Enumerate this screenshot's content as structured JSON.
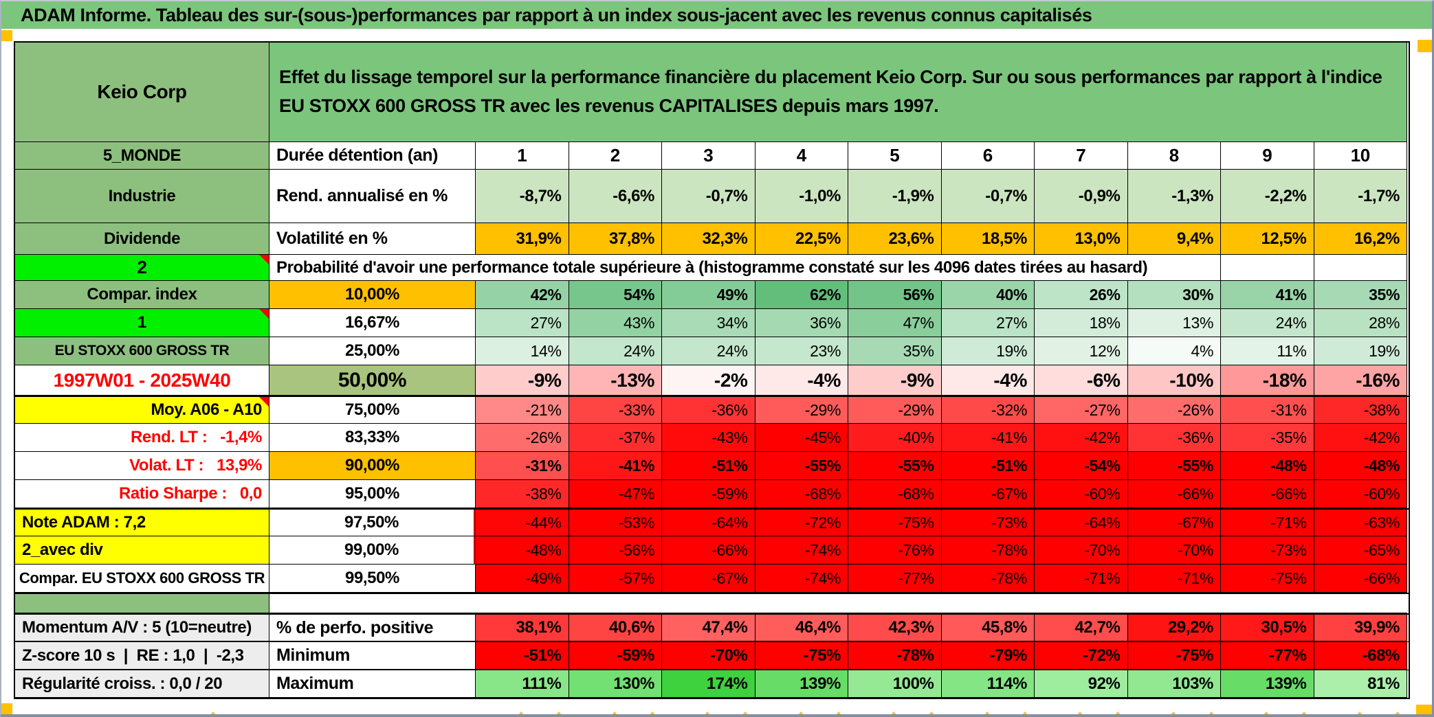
{
  "window": {
    "title_bar": "ADAM Informe. Tableau des sur-(sous-)performances par rapport à un index sous-jacent avec les revenus connus capitalisés"
  },
  "header": {
    "entity": "Keio Corp",
    "description": "Effet du lissage temporel sur la performance financière du placement Keio Corp. Sur ou sous performances par rapport à l'indice EU STOXX 600 GROSS TR avec les revenus CAPITALISES depuis mars 1997."
  },
  "col_header": {
    "label": "5_MONDE",
    "metric": "Durée détention (an)",
    "columns": [
      "1",
      "2",
      "3",
      "4",
      "5",
      "6",
      "7",
      "8",
      "9",
      "10"
    ]
  },
  "stat_rows": [
    {
      "label": "Industrie",
      "metric": "Rend. annualisé en %",
      "values": [
        "-8,7%",
        "-6,6%",
        "-0,7%",
        "-1,0%",
        "-1,9%",
        "-0,7%",
        "-0,9%",
        "-1,3%",
        "-2,2%",
        "-1,7%"
      ]
    },
    {
      "label": "Dividende",
      "metric": "Volatilité en %",
      "values": [
        "31,9%",
        "37,8%",
        "32,3%",
        "22,5%",
        "23,6%",
        "18,5%",
        "13,0%",
        "9,4%",
        "12,5%",
        "16,2%"
      ]
    }
  ],
  "probability_header": {
    "label": "2",
    "text": "Probabilité d'avoir une performance totale supérieure à (histogramme constaté sur les 4096 dates tirées au hasard)"
  },
  "percentile_rows": [
    {
      "label": "Compar. index",
      "pct": "10,00%",
      "values": [
        42,
        54,
        49,
        62,
        56,
        40,
        26,
        30,
        41,
        35
      ]
    },
    {
      "label": "1",
      "pct": "16,67%",
      "values": [
        27,
        43,
        34,
        36,
        47,
        27,
        18,
        13,
        24,
        28
      ]
    },
    {
      "label": "EU STOXX 600 GROSS TR",
      "pct": "25,00%",
      "values": [
        14,
        24,
        24,
        23,
        35,
        19,
        12,
        4,
        11,
        19
      ]
    },
    {
      "label": "1997W01 - 2025W40",
      "pct": "50,00%",
      "values": [
        -9,
        -13,
        -2,
        -4,
        -9,
        -4,
        -6,
        -10,
        -18,
        -16
      ]
    },
    {
      "label": "Moy. A06 - A10",
      "pct": "75,00%",
      "values": [
        -21,
        -33,
        -36,
        -29,
        -29,
        -32,
        -27,
        -26,
        -31,
        -38
      ]
    },
    {
      "label": "Rend. LT :   -1,4%",
      "pct": "83,33%",
      "values": [
        -26,
        -37,
        -43,
        -45,
        -40,
        -41,
        -42,
        -36,
        -35,
        -42
      ]
    },
    {
      "label": "Volat. LT :   13,9%",
      "pct": "90,00%",
      "values": [
        -31,
        -41,
        -51,
        -55,
        -55,
        -51,
        -54,
        -55,
        -48,
        -48
      ]
    },
    {
      "label": "Ratio Sharpe :   0,0",
      "pct": "95,00%",
      "values": [
        -38,
        -47,
        -59,
        -68,
        -68,
        -67,
        -60,
        -66,
        -66,
        -60
      ]
    },
    {
      "label": "Note ADAM : 7,2",
      "pct": "97,50%",
      "values": [
        -44,
        -53,
        -64,
        -72,
        -75,
        -73,
        -64,
        -67,
        -71,
        -63
      ]
    },
    {
      "label": "2_avec div",
      "pct": "99,00%",
      "values": [
        -48,
        -56,
        -66,
        -74,
        -76,
        -78,
        -70,
        -70,
        -73,
        -65
      ]
    },
    {
      "label": "Compar. EU STOXX 600 GROSS TR",
      "pct": "99,50%",
      "values": [
        -49,
        -57,
        -67,
        -74,
        -77,
        -78,
        -71,
        -71,
        -75,
        -66
      ]
    }
  ],
  "footer_rows": [
    {
      "label": "Momentum A/V : 5 (10=neutre)",
      "metric": "% de perfo. positive",
      "display": [
        "38,1%",
        "40,6%",
        "47,4%",
        "46,4%",
        "42,3%",
        "45,8%",
        "42,7%",
        "29,2%",
        "30,5%",
        "39,9%"
      ],
      "values": [
        38.1,
        40.6,
        47.4,
        46.4,
        42.3,
        45.8,
        42.7,
        29.2,
        30.5,
        39.9
      ],
      "scale": "perf"
    },
    {
      "label": "Z-score 10 s  |  RE : 1,0  |  -2,3",
      "metric": "Minimum",
      "display": [
        "-51%",
        "-59%",
        "-70%",
        "-75%",
        "-78%",
        "-79%",
        "-72%",
        "-75%",
        "-77%",
        "-68%"
      ],
      "values": [
        -51,
        -59,
        -70,
        -75,
        -78,
        -79,
        -72,
        -75,
        -77,
        -68
      ],
      "scale": "min"
    },
    {
      "label": "Régularité croiss. : 0,0 / 20",
      "metric": "Maximum",
      "display": [
        "111%",
        "130%",
        "174%",
        "139%",
        "100%",
        "114%",
        "92%",
        "103%",
        "139%",
        "81%"
      ],
      "values": [
        111,
        130,
        174,
        139,
        100,
        114,
        92,
        103,
        139,
        81
      ],
      "scale": "max"
    }
  ],
  "colors": {
    "banner_green": "#7cc57d",
    "label_green": "#8dc07f",
    "bright_green": "#00f000",
    "orange": "#ffc000",
    "yellow": "#ffff00",
    "sage_50pct": "#a9c47e",
    "rend_row_bg": "#cce5c1",
    "footer_label_gray": "#ededed",
    "red_text": "#ff0000",
    "scale_pos_max": "#63be7b",
    "scale_neg_max": "#ff0000",
    "scale_max_low": "#abefab",
    "scale_max_high": "#3ed23e",
    "scale_perf_low": "#ff1414",
    "scale_perf_high": "#ff6060"
  }
}
